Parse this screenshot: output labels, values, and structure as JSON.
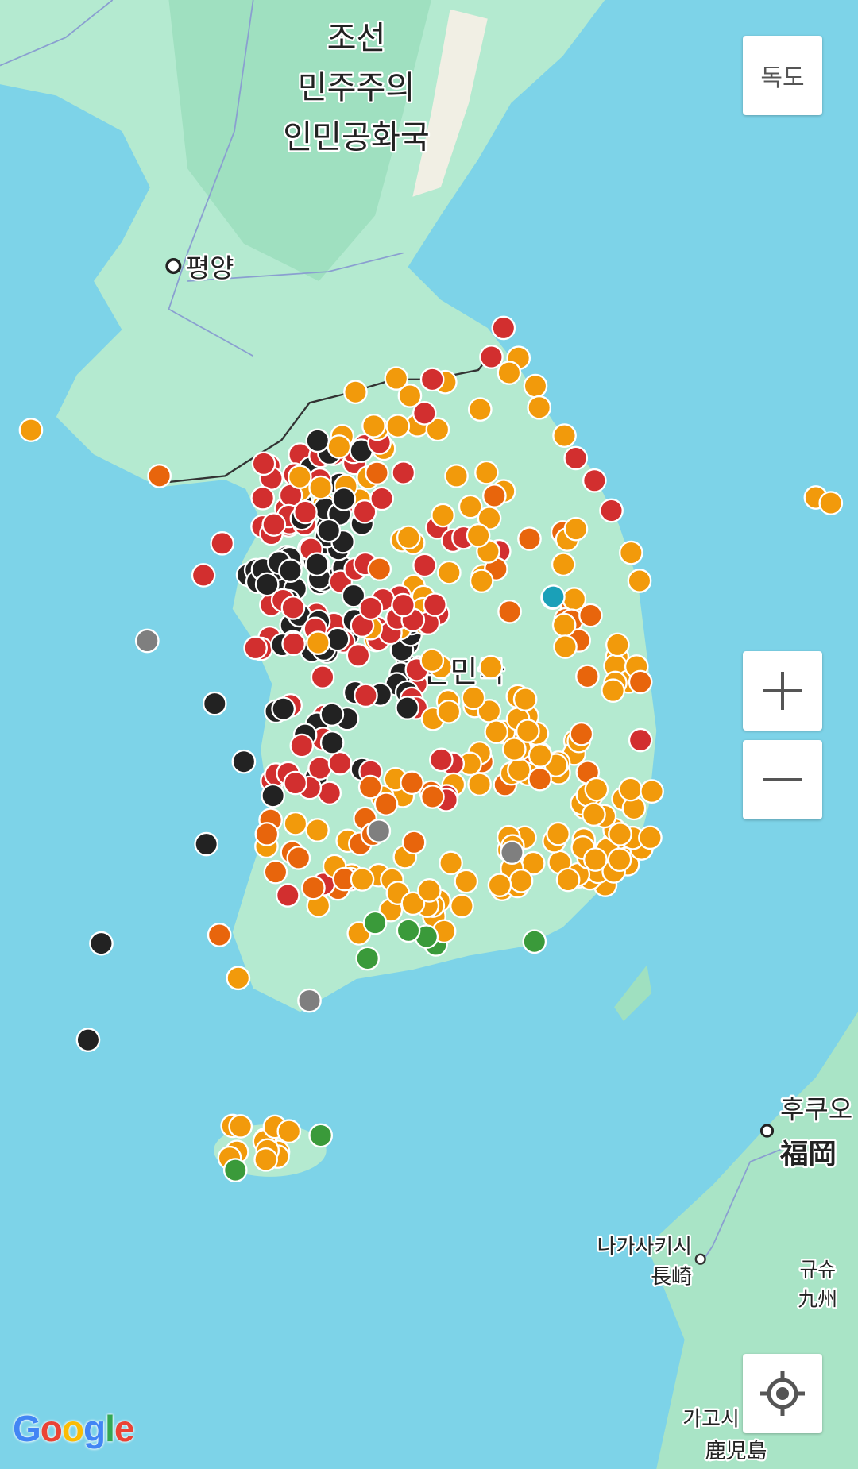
{
  "map": {
    "labels": {
      "north_korea_line1": "조선",
      "north_korea_line2": "민주주의",
      "north_korea_line3": "인민공화국",
      "pyongyang": "평양",
      "south_korea": "대한민국",
      "fukuoka_ko": "후쿠오",
      "fukuoka_ja": "福岡",
      "nagasaki_ko": "나가사키시",
      "nagasaki_ja": "長崎",
      "kyushu_ko": "규슈",
      "kyushu_ja": "九州",
      "kagoshima_ko": "가고시",
      "kagoshima_ja": "鹿児島"
    },
    "colors": {
      "sea": "#7dd3e8",
      "land": "#b4ead0",
      "marker_orange": "#f29a0b",
      "marker_dark_orange": "#e8650c",
      "marker_red": "#d22f2f",
      "marker_black": "#222222",
      "marker_gray": "#7f7f7f",
      "marker_green": "#3a9a3a",
      "marker_teal": "#1aa0b8"
    }
  },
  "controls": {
    "dokdo_label": "독도",
    "zoom_in_icon": "plus-icon",
    "zoom_out_icon": "minus-icon",
    "locate_icon": "crosshair-icon"
  },
  "attribution": {
    "logo": "Google"
  }
}
